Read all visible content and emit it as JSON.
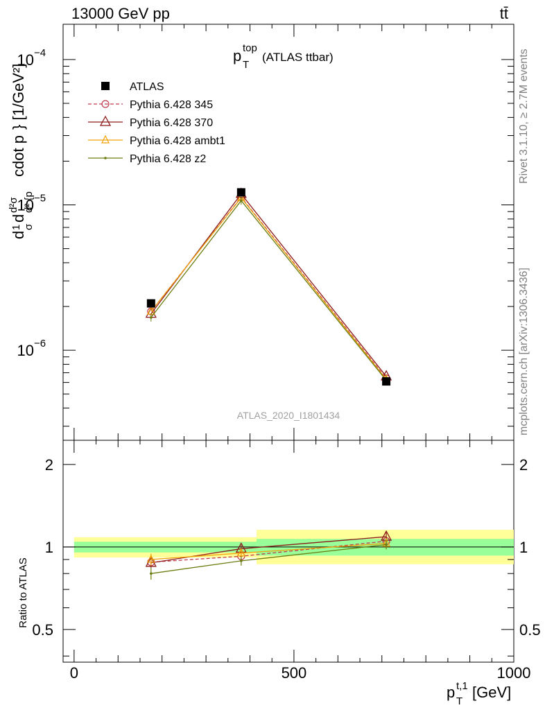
{
  "header": {
    "left": "13000 GeV pp",
    "right": "tt̄"
  },
  "plot_title": {
    "main": "p",
    "sup": "top",
    "sub": "T",
    "suffix": "(ATLAS ttbar)"
  },
  "watermark": "ATLAS_2020_I1801434",
  "side_text": {
    "rivet": "Rivet 3.1.10, ≥ 2.7M events",
    "mcplots": "mcplots.cern.ch [arXiv:1306.3436]"
  },
  "ylabel_main": "d1/σ dσ^{td}/d²{p_T^{t,1} cdot p_T^{t,2}} [1/GeV²]",
  "ylabel_ratio": "Ratio to ATLAS",
  "xlabel": "p_T^{t,1} [GeV]",
  "colors": {
    "atlas": "#000000",
    "p345": "#c0394b",
    "p370": "#8b1a1a",
    "ambt1": "#f0a30a",
    "z2": "#6b7d10",
    "band_inner": "#99ff99",
    "band_outer": "#ffff99"
  },
  "chart_data": [
    {
      "type": "line",
      "panel": "main",
      "title": "p_T^top (ATLAS ttbar)",
      "xlim": [
        -25,
        1000
      ],
      "ylim": [
        2.4e-07,
        0.000175
      ],
      "yscale": "log",
      "x_ticks": [
        0,
        500,
        1000
      ],
      "y_ticks": [
        {
          "value": 1e-06,
          "label": "10",
          "exp": "−6"
        },
        {
          "value": 1e-05,
          "label": "10",
          "exp": "−5"
        },
        {
          "value": 0.0001,
          "label": "10",
          "exp": "−4"
        }
      ],
      "x": [
        175,
        380,
        710
      ],
      "legend_position": "top-left",
      "series": [
        {
          "name": "ATLAS",
          "key": "atlas",
          "style": "square",
          "values": [
            2.1e-06,
            1.22e-05,
            6.1e-07
          ]
        },
        {
          "name": "Pythia 6.428 345",
          "key": "p345",
          "style": "dashed-circle",
          "values": [
            1.85e-06,
            1.13e-05,
            6.4e-07
          ]
        },
        {
          "name": "Pythia 6.428 370",
          "key": "p370",
          "style": "triangle",
          "values": [
            1.78e-06,
            1.19e-05,
            6.6e-07
          ]
        },
        {
          "name": "Pythia 6.428 ambt1",
          "key": "ambt1",
          "style": "triangle-small",
          "values": [
            1.85e-06,
            1.12e-05,
            6.3e-07
          ]
        },
        {
          "name": "Pythia 6.428 z2",
          "key": "z2",
          "style": "dot",
          "values": [
            1.68e-06,
            1.07e-05,
            6.2e-07
          ]
        }
      ]
    },
    {
      "type": "line",
      "panel": "ratio",
      "ylabel": "Ratio to ATLAS",
      "xlabel": "p_T^{t,1} [GeV]",
      "xlim": [
        -25,
        1000
      ],
      "ylim": [
        0.38,
        2.45
      ],
      "yscale": "log",
      "y_ticks": [
        0.5,
        1,
        2
      ],
      "x": [
        175,
        380,
        710
      ],
      "bands": [
        {
          "x_range": [
            0,
            415
          ],
          "inner": [
            0.955,
            1.045
          ],
          "outer": [
            0.915,
            1.085
          ]
        },
        {
          "x_range": [
            415,
            1000
          ],
          "inner": [
            0.93,
            1.07
          ],
          "outer": [
            0.865,
            1.155
          ]
        }
      ],
      "series": [
        {
          "key": "p345",
          "values": [
            0.88,
            0.925,
            1.05
          ],
          "err": [
            0.03,
            0.03,
            0.04
          ]
        },
        {
          "key": "p370",
          "values": [
            0.875,
            0.985,
            1.09
          ],
          "err": [
            0.035,
            0.03,
            0.04
          ]
        },
        {
          "key": "ambt1",
          "values": [
            0.9,
            0.95,
            1.03
          ],
          "err": [
            0.045,
            0.035,
            0.045
          ]
        },
        {
          "key": "z2",
          "values": [
            0.8,
            0.89,
            1.02
          ],
          "err": [
            0.04,
            0.035,
            0.04
          ]
        }
      ]
    }
  ]
}
